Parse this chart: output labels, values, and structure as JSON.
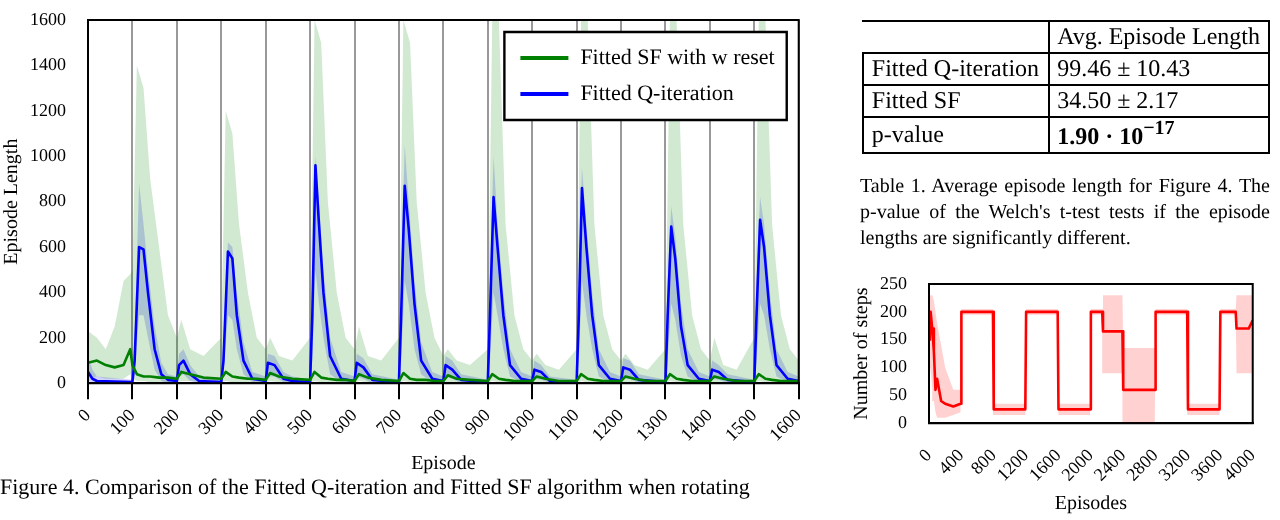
{
  "chart_data": [
    {
      "type": "line",
      "xlabel": "Episode",
      "ylabel": "Episode Length",
      "xlim": [
        0,
        1600
      ],
      "ylim": [
        0,
        1600
      ],
      "xticks": [
        0,
        100,
        200,
        300,
        400,
        500,
        600,
        700,
        800,
        900,
        1000,
        1100,
        1200,
        1300,
        1400,
        1500,
        1600
      ],
      "yticks": [
        0,
        200,
        400,
        600,
        800,
        1000,
        1200,
        1400,
        1600
      ],
      "grid": "x",
      "legend": "top right",
      "annotations": [
        "Figure 4. Comparison of the Fitted Q-iteration and Fitted SF algorithm when rotating"
      ],
      "series": [
        {
          "name": "Fitted SF with w reset",
          "color": "#008000",
          "x": [
            0,
            20,
            40,
            60,
            80,
            95,
            100,
            110,
            125,
            140,
            160,
            180,
            200,
            210,
            230,
            260,
            300,
            310,
            325,
            340,
            360,
            380,
            400,
            410,
            430,
            460,
            500,
            510,
            525,
            540,
            560,
            580,
            600,
            610,
            630,
            660,
            700,
            710,
            725,
            740,
            760,
            780,
            800,
            810,
            830,
            860,
            900,
            910,
            925,
            940,
            960,
            980,
            1000,
            1010,
            1030,
            1060,
            1100,
            1110,
            1125,
            1140,
            1160,
            1180,
            1200,
            1210,
            1230,
            1260,
            1300,
            1310,
            1325,
            1340,
            1360,
            1380,
            1400,
            1410,
            1430,
            1460,
            1500,
            1510,
            1525,
            1540,
            1560,
            1580,
            1600
          ],
          "values": [
            90,
            100,
            80,
            70,
            80,
            150,
            80,
            40,
            30,
            30,
            25,
            25,
            20,
            50,
            40,
            25,
            20,
            50,
            30,
            25,
            20,
            20,
            15,
            45,
            30,
            20,
            15,
            50,
            25,
            20,
            15,
            15,
            10,
            40,
            25,
            15,
            10,
            45,
            20,
            15,
            15,
            10,
            10,
            35,
            20,
            15,
            10,
            40,
            20,
            15,
            10,
            10,
            10,
            30,
            20,
            10,
            10,
            40,
            20,
            15,
            10,
            10,
            10,
            30,
            20,
            10,
            10,
            40,
            20,
            15,
            10,
            10,
            10,
            30,
            20,
            10,
            10,
            40,
            20,
            15,
            10,
            10,
            10
          ],
          "upper": [
            230,
            200,
            150,
            250,
            450,
            480,
            500,
            1400,
            1300,
            900,
            600,
            300,
            200,
            280,
            150,
            120,
            200,
            1200,
            1100,
            700,
            400,
            200,
            150,
            200,
            120,
            100,
            200,
            1600,
            1500,
            800,
            400,
            200,
            150,
            250,
            120,
            100,
            200,
            1600,
            1500,
            800,
            400,
            200,
            120,
            150,
            100,
            80,
            150,
            1600,
            1600,
            700,
            300,
            150,
            100,
            130,
            80,
            60,
            150,
            1600,
            1600,
            700,
            300,
            150,
            100,
            130,
            80,
            60,
            150,
            1600,
            1600,
            700,
            300,
            150,
            100,
            200,
            80,
            60,
            200,
            1600,
            1600,
            700,
            300,
            150,
            100
          ],
          "lower": [
            20,
            30,
            20,
            20,
            20,
            40,
            20,
            10,
            10,
            5,
            5,
            5,
            5,
            10,
            10,
            5,
            5,
            10,
            5,
            5,
            5,
            5,
            5,
            10,
            5,
            5,
            5,
            10,
            5,
            5,
            5,
            5,
            0,
            10,
            5,
            0,
            0,
            10,
            5,
            5,
            0,
            0,
            0,
            5,
            5,
            0,
            0,
            10,
            5,
            0,
            0,
            0,
            0,
            5,
            0,
            0,
            0,
            10,
            5,
            0,
            0,
            0,
            0,
            5,
            0,
            0,
            0,
            10,
            5,
            0,
            0,
            0,
            0,
            5,
            0,
            0,
            0,
            10,
            5,
            0,
            0,
            0,
            0
          ]
        },
        {
          "name": "Fitted Q-iteration",
          "color": "#0000ff",
          "x": [
            0,
            10,
            20,
            100,
            105,
            115,
            125,
            135,
            150,
            165,
            180,
            200,
            205,
            215,
            230,
            250,
            300,
            305,
            315,
            325,
            335,
            350,
            370,
            400,
            405,
            420,
            440,
            460,
            500,
            505,
            512,
            520,
            530,
            545,
            570,
            600,
            605,
            620,
            640,
            700,
            705,
            713,
            722,
            735,
            750,
            775,
            800,
            805,
            820,
            840,
            900,
            905,
            913,
            922,
            935,
            950,
            975,
            1000,
            1005,
            1020,
            1040,
            1100,
            1105,
            1112,
            1122,
            1135,
            1150,
            1175,
            1200,
            1205,
            1220,
            1240,
            1300,
            1305,
            1313,
            1322,
            1335,
            1350,
            1375,
            1400,
            1405,
            1420,
            1440,
            1500,
            1505,
            1513,
            1522,
            1535,
            1550,
            1575,
            1600
          ],
          "values": [
            50,
            20,
            10,
            5,
            100,
            600,
            590,
            400,
            150,
            40,
            15,
            10,
            80,
            100,
            40,
            10,
            5,
            100,
            580,
            550,
            300,
            100,
            20,
            10,
            90,
            80,
            20,
            10,
            5,
            300,
            960,
            700,
            400,
            120,
            20,
            10,
            90,
            70,
            15,
            5,
            300,
            870,
            680,
            350,
            100,
            20,
            10,
            80,
            60,
            15,
            5,
            300,
            820,
            600,
            300,
            80,
            20,
            10,
            60,
            50,
            10,
            5,
            300,
            860,
            600,
            300,
            80,
            20,
            10,
            70,
            60,
            15,
            5,
            300,
            690,
            550,
            250,
            80,
            20,
            10,
            60,
            50,
            15,
            5,
            300,
            720,
            600,
            300,
            80,
            20,
            10
          ],
          "upper": [
            120,
            60,
            30,
            15,
            200,
            880,
            700,
            500,
            250,
            90,
            40,
            30,
            130,
            150,
            80,
            30,
            15,
            200,
            620,
            600,
            400,
            180,
            50,
            30,
            130,
            120,
            50,
            30,
            15,
            450,
            1000,
            800,
            500,
            200,
            50,
            30,
            130,
            110,
            40,
            15,
            450,
            1050,
            800,
            450,
            180,
            50,
            30,
            120,
            100,
            40,
            15,
            450,
            1000,
            700,
            400,
            150,
            50,
            30,
            100,
            80,
            30,
            15,
            450,
            950,
            700,
            400,
            150,
            50,
            30,
            110,
            100,
            40,
            15,
            450,
            780,
            650,
            350,
            150,
            50,
            30,
            100,
            80,
            40,
            15,
            450,
            820,
            700,
            400,
            150,
            50,
            30
          ],
          "lower": [
            10,
            5,
            0,
            0,
            40,
            300,
            300,
            200,
            60,
            10,
            0,
            0,
            30,
            40,
            10,
            0,
            0,
            40,
            300,
            280,
            150,
            40,
            5,
            0,
            30,
            30,
            5,
            0,
            0,
            100,
            500,
            350,
            200,
            40,
            5,
            0,
            30,
            20,
            0,
            0,
            100,
            450,
            350,
            150,
            40,
            5,
            0,
            30,
            20,
            0,
            0,
            100,
            400,
            300,
            150,
            30,
            5,
            0,
            20,
            15,
            0,
            0,
            100,
            450,
            300,
            150,
            30,
            5,
            0,
            20,
            20,
            0,
            0,
            100,
            350,
            280,
            120,
            30,
            5,
            0,
            20,
            15,
            0,
            0,
            100,
            350,
            300,
            150,
            30,
            5,
            0
          ]
        }
      ]
    },
    {
      "type": "other",
      "annotations": [
        "Avg. Episode Length",
        "Fitted Q-iteration",
        "99.46 ± 10.43",
        "Fitted SF",
        "34.50 ± 2.17",
        "p-value",
        "1.90 · 10$^{−17}$",
        "Table 1. Average episode length for Figure 4. The p-value of the Welch's t-test tests if the episode lengths are significantly different."
      ]
    },
    {
      "type": "line",
      "xlabel": "Episodes",
      "ylabel": "Number of steps",
      "xlim": [
        0,
        4000
      ],
      "ylim": [
        0,
        250
      ],
      "xticks": [
        0,
        400,
        800,
        1200,
        1600,
        2000,
        2400,
        2800,
        3200,
        3600,
        4000
      ],
      "yticks": [
        0,
        50,
        100,
        150,
        200,
        250
      ],
      "series": [
        {
          "color": "#ff0000",
          "x": [
            0,
            10,
            20,
            40,
            60,
            80,
            100,
            150,
            200,
            300,
            390,
            400,
            790,
            800,
            1190,
            1200,
            1590,
            1600,
            1990,
            2000,
            2140,
            2150,
            2390,
            2400,
            2790,
            2800,
            3190,
            3200,
            3590,
            3600,
            3790,
            3800,
            3950,
            4000
          ],
          "values": [
            200,
            150,
            200,
            170,
            130,
            60,
            80,
            40,
            35,
            30,
            35,
            200,
            200,
            25,
            25,
            200,
            200,
            25,
            25,
            200,
            200,
            165,
            165,
            60,
            60,
            200,
            200,
            25,
            25,
            200,
            200,
            170,
            170,
            185
          ],
          "upper": [
            230,
            230,
            230,
            230,
            220,
            200,
            180,
            140,
            100,
            60,
            60,
            205,
            205,
            35,
            35,
            205,
            205,
            35,
            35,
            205,
            205,
            230,
            230,
            135,
            135,
            205,
            205,
            35,
            35,
            205,
            205,
            230,
            230,
            230
          ],
          "lower": [
            130,
            80,
            100,
            60,
            40,
            20,
            10,
            10,
            10,
            15,
            20,
            195,
            195,
            15,
            15,
            195,
            195,
            15,
            15,
            195,
            195,
            90,
            90,
            0,
            0,
            195,
            195,
            15,
            15,
            195,
            195,
            90,
            90,
            90
          ]
        }
      ]
    }
  ]
}
